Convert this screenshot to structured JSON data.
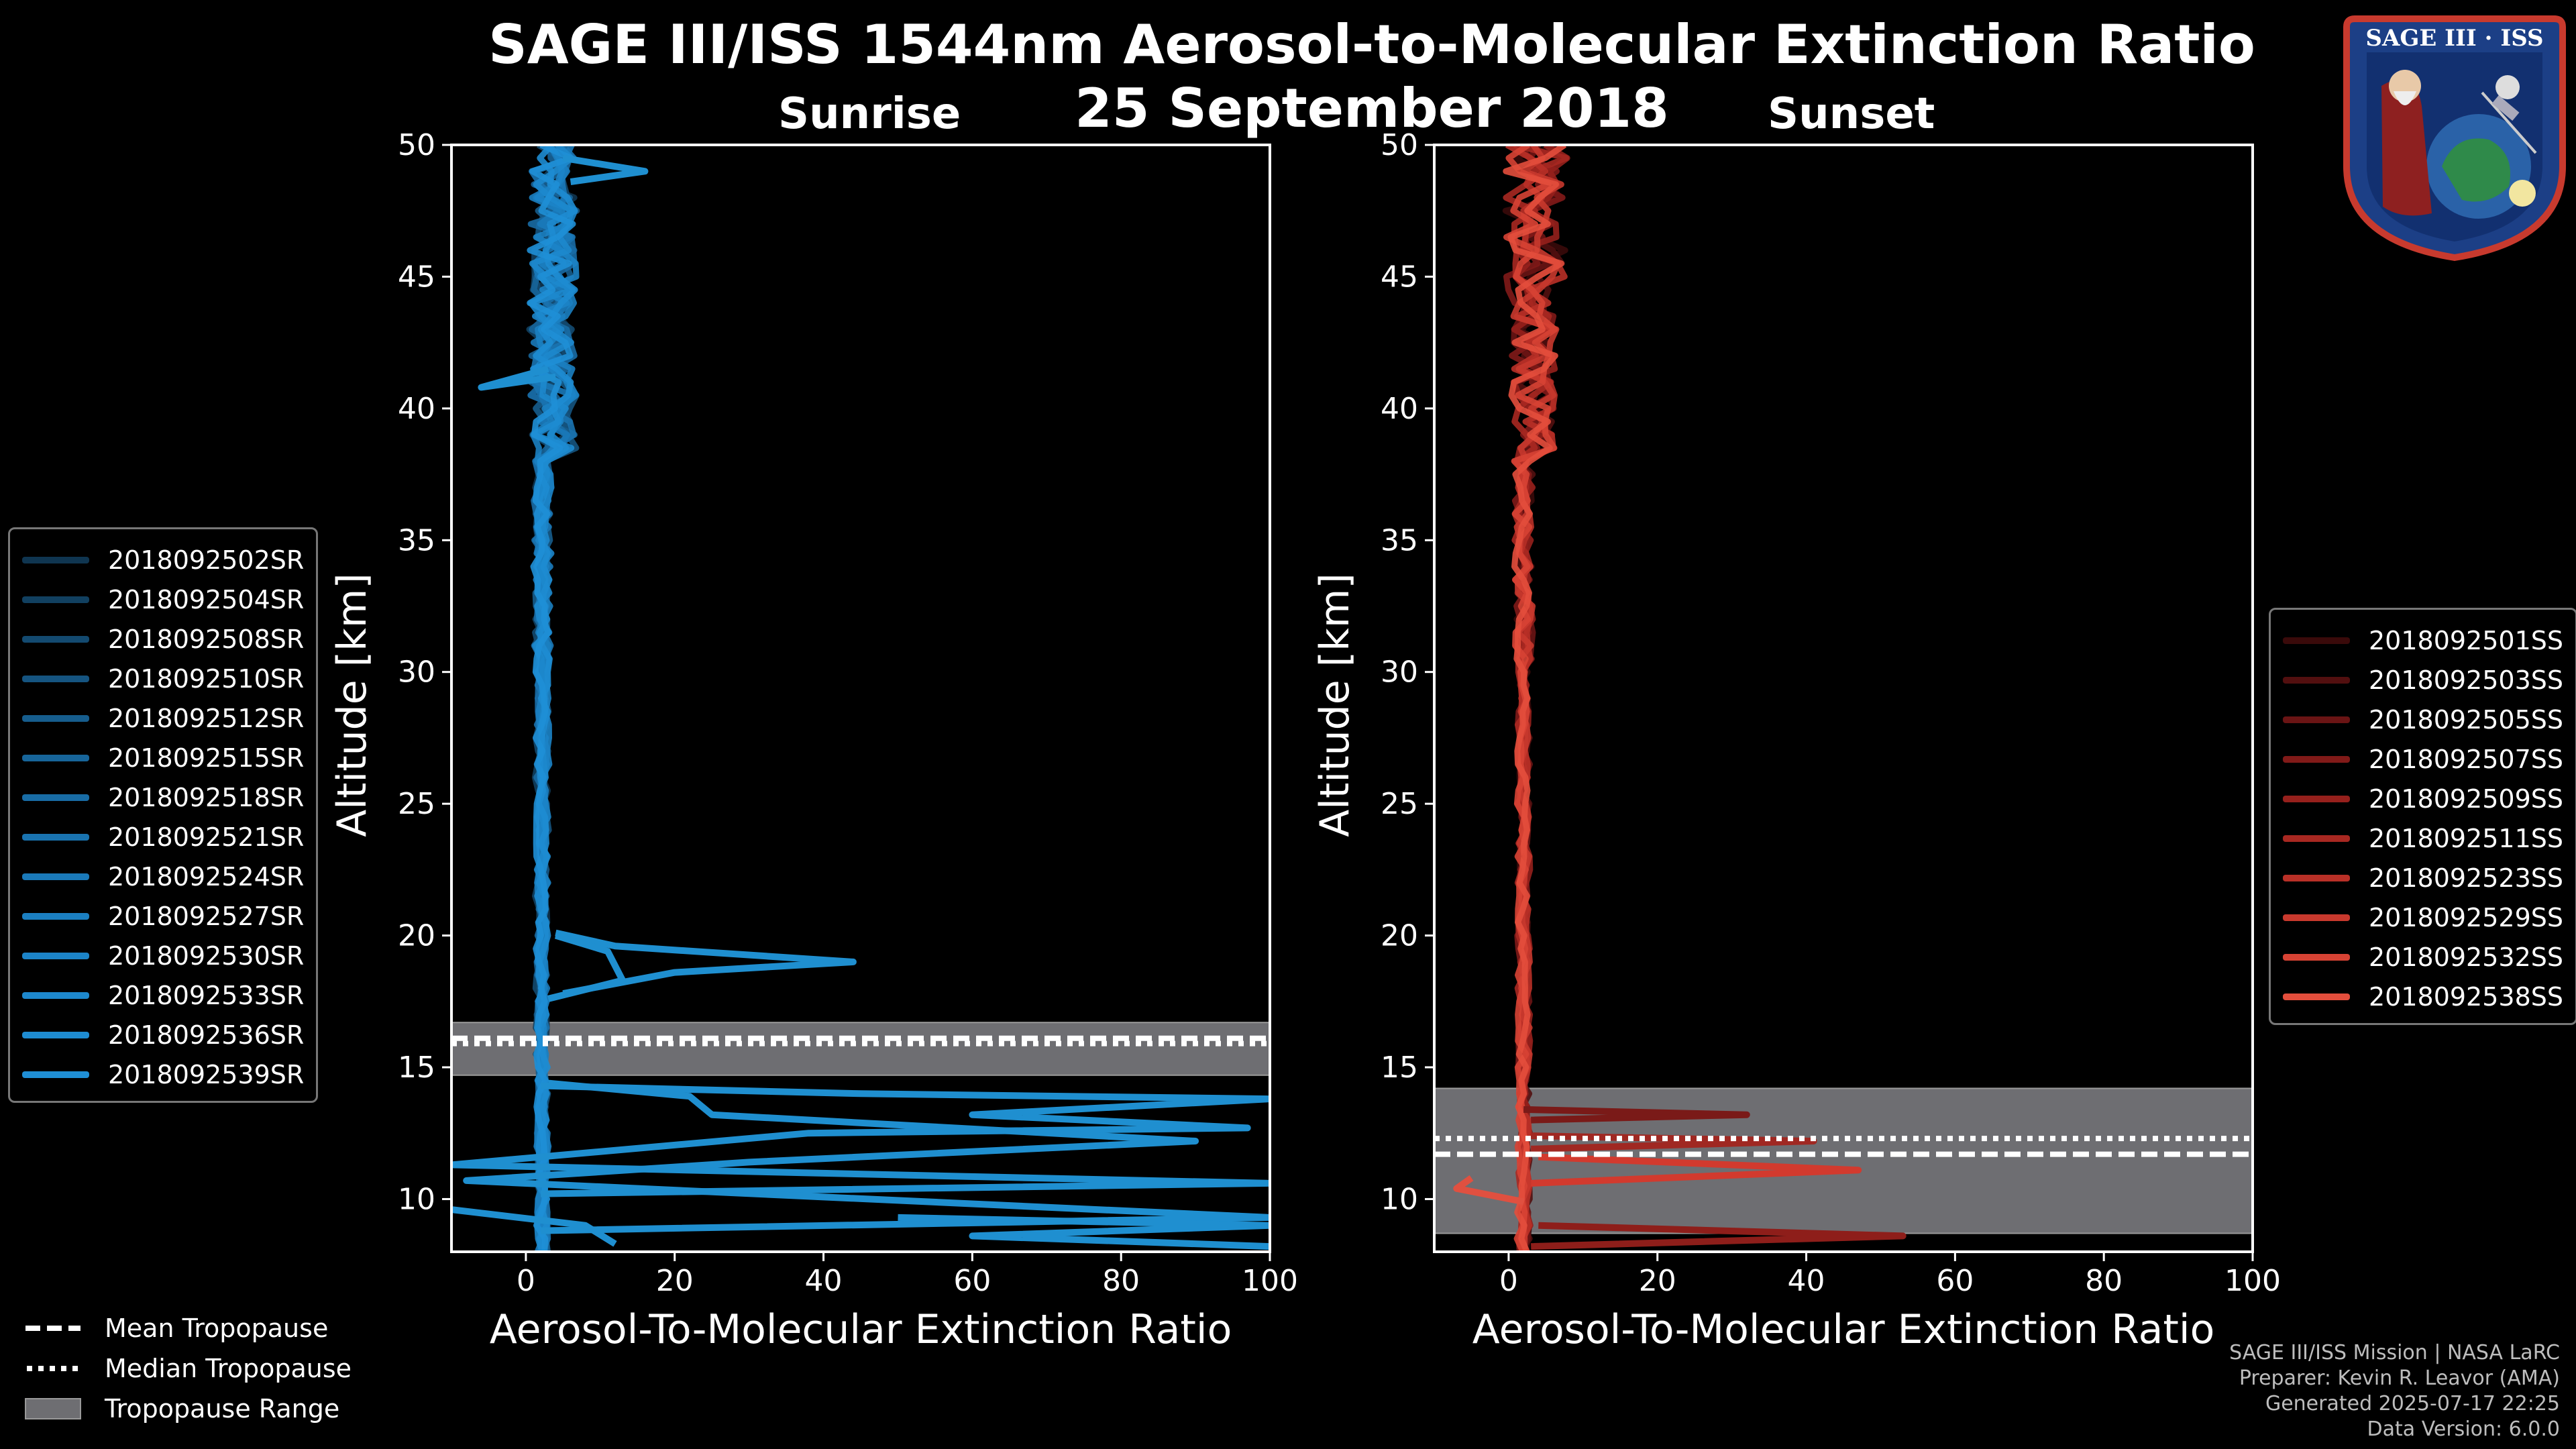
{
  "title": "SAGE III/ISS 1544nm Aerosol-to-Molecular Extinction Ratio",
  "date": "25 September 2018",
  "logo_text": "SAGE III · ISS",
  "legend_tropopause": [
    {
      "label": "Mean Tropopause",
      "style": "dashed"
    },
    {
      "label": "Median Tropopause",
      "style": "dotted"
    },
    {
      "label": "Tropopause Range",
      "style": "band"
    }
  ],
  "credits": [
    "SAGE III/ISS Mission | NASA LaRC",
    "Preparer: Kevin R. Leavor (AMA)",
    "Generated 2025-07-17 22:25",
    "Data Version: 6.0.0"
  ],
  "chart_data": [
    {
      "type": "line",
      "title": "Sunrise",
      "xlabel": "Aerosol-To-Molecular Extinction Ratio",
      "ylabel": "Altitude [km]",
      "xlim": [
        -10,
        100
      ],
      "ylim": [
        8,
        50
      ],
      "xticks": [
        0,
        20,
        40,
        60,
        80,
        100
      ],
      "yticks": [
        10,
        15,
        20,
        25,
        30,
        35,
        40,
        45,
        50
      ],
      "tropopause": {
        "mean": 16.1,
        "median": 15.9,
        "range": [
          14.7,
          16.7
        ]
      },
      "base_color": "#1f8fd0",
      "series": [
        {
          "name": "2018092502SR",
          "color": "#0f3550"
        },
        {
          "name": "2018092504SR",
          "color": "#114060"
        },
        {
          "name": "2018092508SR",
          "color": "#134a70"
        },
        {
          "name": "2018092510SR",
          "color": "#155480"
        },
        {
          "name": "2018092512SR",
          "color": "#165d8d"
        },
        {
          "name": "2018092515SR",
          "color": "#17659a"
        },
        {
          "name": "2018092518SR",
          "color": "#186ca5"
        },
        {
          "name": "2018092521SR",
          "color": "#1973b0"
        },
        {
          "name": "2018092524SR",
          "color": "#1a79b9"
        },
        {
          "name": "2018092527SR",
          "color": "#1b7fc1"
        },
        {
          "name": "2018092530SR",
          "color": "#1c84c8"
        },
        {
          "name": "2018092533SR",
          "color": "#1d88cd"
        },
        {
          "name": "2018092536SR",
          "color": "#1e8cd2"
        },
        {
          "name": "2018092539SR",
          "color": "#1f8fd6"
        }
      ],
      "features": [
        {
          "alt": [
            17.8,
            18.6,
            19.0,
            19.6,
            20.1
          ],
          "x": [
            5,
            20,
            44,
            12,
            4
          ]
        },
        {
          "alt": [
            17.6,
            18.3,
            19.4,
            20.0
          ],
          "x": [
            3,
            13,
            11,
            4
          ]
        },
        {
          "alt": [
            14.3,
            14.0,
            13.8,
            13.2,
            12.7,
            12.5,
            11.3,
            10.6,
            10.2
          ],
          "x": [
            2,
            45,
            100,
            60,
            97,
            38,
            -10,
            100,
            2
          ]
        },
        {
          "alt": [
            14.4,
            13.9,
            13.2,
            12.2,
            11.4,
            10.7,
            9.3,
            8.8
          ],
          "x": [
            3,
            22,
            25,
            90,
            30,
            -8,
            100,
            2
          ]
        },
        {
          "alt": [
            9.6,
            9.0,
            8.3
          ],
          "x": [
            -10,
            8,
            12
          ]
        },
        {
          "alt": [
            9.3,
            9.0,
            8.6,
            8.2
          ],
          "x": [
            50,
            100,
            60,
            100
          ]
        },
        {
          "alt": [
            41.5,
            40.8,
            41.2
          ],
          "x": [
            3,
            -6,
            4
          ]
        },
        {
          "alt": [
            49.5,
            49.0,
            48.6
          ],
          "x": [
            5,
            16,
            6
          ]
        }
      ]
    },
    {
      "type": "line",
      "title": "Sunset",
      "xlabel": "Aerosol-To-Molecular Extinction Ratio",
      "ylabel": "Altitude [km]",
      "xlim": [
        -10,
        100
      ],
      "ylim": [
        8,
        50
      ],
      "xticks": [
        0,
        20,
        40,
        60,
        80,
        100
      ],
      "yticks": [
        10,
        15,
        20,
        25,
        30,
        35,
        40,
        45,
        50
      ],
      "tropopause": {
        "mean": 11.7,
        "median": 12.3,
        "range": [
          8.7,
          14.2
        ]
      },
      "base_color": "#e05040",
      "series": [
        {
          "name": "2018092501SS",
          "color": "#3a0a0a"
        },
        {
          "name": "2018092503SS",
          "color": "#520f0f"
        },
        {
          "name": "2018092505SS",
          "color": "#6a1414"
        },
        {
          "name": "2018092507SS",
          "color": "#811a18"
        },
        {
          "name": "2018092509SS",
          "color": "#96201c"
        },
        {
          "name": "2018092511SS",
          "color": "#a82821"
        },
        {
          "name": "2018092523SS",
          "color": "#b93027"
        },
        {
          "name": "2018092529SS",
          "color": "#c8392d"
        },
        {
          "name": "2018092532SS",
          "color": "#d74334"
        },
        {
          "name": "2018092538SS",
          "color": "#e34e3c"
        }
      ],
      "features": [
        {
          "alt": [
            13.4,
            13.2,
            13.0
          ],
          "x": [
            2,
            32,
            3
          ]
        },
        {
          "alt": [
            12.4,
            12.2,
            11.9
          ],
          "x": [
            3,
            41,
            3
          ]
        },
        {
          "alt": [
            11.6,
            11.1,
            10.6
          ],
          "x": [
            4,
            47,
            3
          ]
        },
        {
          "alt": [
            9.0,
            8.6,
            8.2
          ],
          "x": [
            4,
            53,
            3
          ]
        },
        {
          "alt": [
            10.8,
            10.4,
            9.9
          ],
          "x": [
            -5,
            -7,
            2
          ]
        }
      ]
    }
  ]
}
